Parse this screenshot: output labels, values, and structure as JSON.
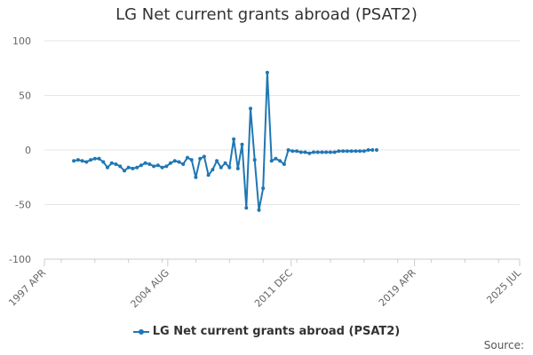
{
  "chart_data": {
    "type": "line",
    "title": "LG Net current grants abroad (PSAT2)",
    "xlabel": "",
    "ylabel": "",
    "ylim": [
      -100,
      100
    ],
    "xlim": [
      "1997-04",
      "2025-07"
    ],
    "y_ticks": [
      "100",
      "50",
      "0",
      "-50",
      "-100"
    ],
    "x_ticks": [
      "1997 APR",
      "2004 AUG",
      "2011 DEC",
      "2019 APR",
      "2025 JUL"
    ],
    "grid": "horizontal",
    "legend_position": "bottom",
    "series": [
      {
        "name": "LG Net current grants abroad (PSAT2)",
        "color": "#1f77b4",
        "x": [
          "1999-01",
          "1999-04",
          "1999-07",
          "1999-10",
          "2000-01",
          "2000-04",
          "2000-07",
          "2000-10",
          "2001-01",
          "2001-04",
          "2001-07",
          "2001-10",
          "2002-01",
          "2002-04",
          "2002-07",
          "2002-10",
          "2003-01",
          "2003-04",
          "2003-07",
          "2003-10",
          "2004-01",
          "2004-04",
          "2004-07",
          "2004-10",
          "2005-01",
          "2005-04",
          "2005-07",
          "2005-10",
          "2006-01",
          "2006-04",
          "2006-07",
          "2006-10",
          "2007-01",
          "2007-04",
          "2007-07",
          "2007-10",
          "2008-01",
          "2008-04",
          "2008-07",
          "2008-10",
          "2009-01",
          "2009-04",
          "2009-07",
          "2009-10",
          "2010-01",
          "2010-04",
          "2010-07",
          "2010-10",
          "2011-01",
          "2011-04",
          "2011-07",
          "2011-10",
          "2012-01",
          "2012-04",
          "2012-07",
          "2012-10",
          "2013-01",
          "2013-04",
          "2013-07",
          "2013-10",
          "2014-01",
          "2014-04",
          "2014-07",
          "2014-10",
          "2015-01",
          "2015-04",
          "2015-07",
          "2015-10",
          "2016-01",
          "2016-04",
          "2016-07",
          "2016-10",
          "2017-01"
        ],
        "values": [
          -10,
          -9,
          -10,
          -11,
          -9,
          -8,
          -8,
          -11,
          -16,
          -12,
          -13,
          -15,
          -19,
          -16,
          -17,
          -16,
          -14,
          -12,
          -13,
          -15,
          -14,
          -16,
          -15,
          -12,
          -10,
          -11,
          -13,
          -7,
          -9,
          -25,
          -8,
          -6,
          -23,
          -18,
          -10,
          -16,
          -12,
          -16,
          10,
          -17,
          5,
          -53,
          38,
          -9,
          -55,
          -35,
          71,
          -10,
          -8,
          -10,
          -13,
          0,
          -1,
          -1,
          -2,
          -2,
          -3,
          -2,
          -2,
          -2,
          -2,
          -2,
          -2,
          -1,
          -1,
          -1,
          -1,
          -1,
          -1,
          -1,
          0,
          0,
          0
        ]
      }
    ]
  },
  "source_label": "Source:"
}
